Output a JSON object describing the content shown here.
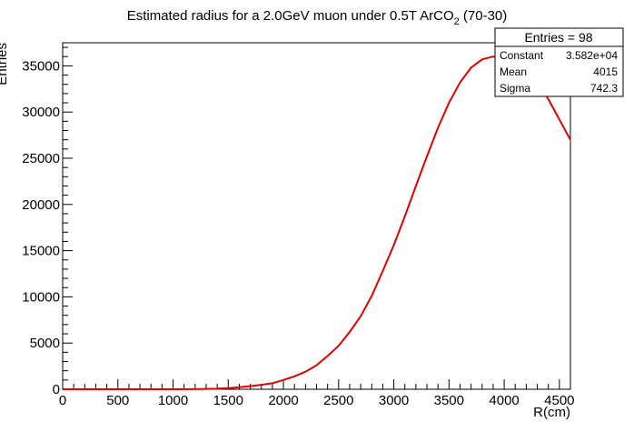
{
  "chart_data": {
    "type": "line",
    "title": "Estimated radius for a 2.0GeV muon under 0.5T ArCO",
    "title_subscript": "2",
    "title_suffix": " (70-30)",
    "xlabel": "R(cm)",
    "ylabel": "Entries",
    "xlim": [
      0,
      4600
    ],
    "ylim": [
      0,
      37500
    ],
    "x_ticks": [
      0,
      500,
      1000,
      1500,
      2000,
      2500,
      3000,
      3500,
      4000,
      4500
    ],
    "y_ticks": [
      0,
      5000,
      10000,
      15000,
      20000,
      25000,
      30000,
      35000
    ],
    "grid": false,
    "series": [
      {
        "color": "#e00000",
        "x": [
          0,
          200,
          400,
          600,
          800,
          1000,
          1200,
          1400,
          1500,
          1600,
          1700,
          1800,
          1900,
          2000,
          2100,
          2200,
          2300,
          2400,
          2500,
          2600,
          2700,
          2800,
          2900,
          3000,
          3100,
          3200,
          3300,
          3400,
          3500,
          3600,
          3700,
          3800,
          3900,
          4000,
          4100,
          4200,
          4300,
          4400,
          4500,
          4600
        ],
        "y": [
          0,
          0,
          0,
          0,
          0,
          0,
          10,
          60,
          120,
          220,
          330,
          480,
          650,
          1000,
          1400,
          1900,
          2600,
          3600,
          4700,
          6200,
          7900,
          10100,
          12800,
          15600,
          18700,
          22000,
          25200,
          28300,
          31000,
          33200,
          34800,
          35700,
          36000,
          35800,
          35400,
          34600,
          33200,
          31400,
          29200,
          27000
        ]
      }
    ],
    "stats": {
      "header": "Entries = 98",
      "rows": [
        {
          "label": "Constant",
          "value": "3.582e+04"
        },
        {
          "label": "Mean",
          "value": "4015"
        },
        {
          "label": "Sigma",
          "value": "742.3"
        }
      ]
    }
  }
}
